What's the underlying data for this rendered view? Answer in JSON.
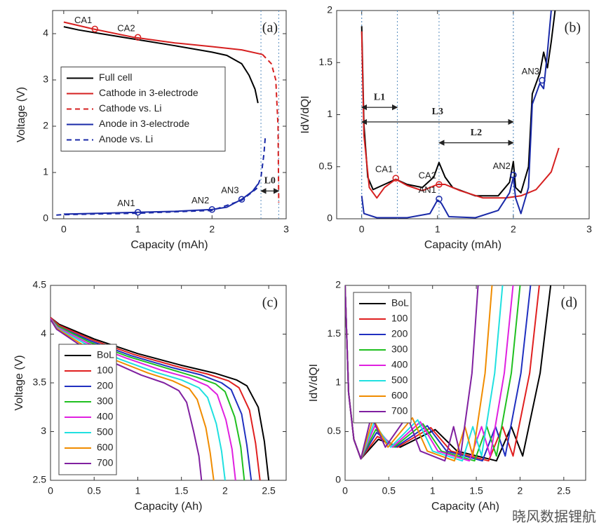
{
  "chart_data": [
    {
      "type": "line",
      "panel_label": "(a)",
      "xlabel": "Capacity (mAh)",
      "ylabel": "Voltage (V)",
      "xlim": [
        -0.15,
        3
      ],
      "ylim": [
        0,
        4.5
      ],
      "xticks": [
        0,
        1,
        2,
        3
      ],
      "yticks": [
        0,
        1,
        2,
        3,
        4
      ],
      "legend": "center left",
      "series": [
        {
          "name": "Full cell",
          "color": "#000000",
          "dashed": false,
          "x": [
            0,
            0.2,
            0.5,
            1,
            1.5,
            2,
            2.2,
            2.4,
            2.5,
            2.58,
            2.62
          ],
          "values": [
            4.15,
            4.08,
            4.0,
            3.87,
            3.74,
            3.6,
            3.53,
            3.35,
            3.1,
            2.8,
            2.5
          ]
        },
        {
          "name": "Cathode in 3-electrode",
          "color": "#d62020",
          "dashed": false,
          "x": [
            0,
            0.4,
            0.95,
            1.5,
            2,
            2.4,
            2.68
          ],
          "values": [
            4.25,
            4.1,
            3.92,
            3.8,
            3.72,
            3.65,
            3.55
          ]
        },
        {
          "name": "Cathode vs. Li",
          "color": "#d62020",
          "dashed": true,
          "x": [
            2.68,
            2.8,
            2.86,
            2.89,
            2.9
          ],
          "values": [
            3.55,
            3.35,
            3.0,
            2.0,
            0.35
          ]
        },
        {
          "name": "Anode in 3-electrode",
          "color": "#1a2aa8",
          "dashed": false,
          "x": [
            0,
            0.5,
            1,
            1.5,
            2,
            2.2,
            2.4,
            2.55,
            2.62
          ],
          "values": [
            0.1,
            0.12,
            0.14,
            0.16,
            0.2,
            0.25,
            0.42,
            0.6,
            0.75
          ]
        },
        {
          "name": "Anode vs. Li",
          "color": "#1a2aa8",
          "dashed": true,
          "x": [
            -0.1,
            0,
            1,
            2,
            2.4,
            2.6,
            2.66,
            2.7,
            2.72
          ],
          "values": [
            0.08,
            0.09,
            0.12,
            0.18,
            0.4,
            0.65,
            0.9,
            1.4,
            1.8
          ]
        }
      ],
      "annotations": [
        {
          "text": "CA1",
          "x": 0.42,
          "y": 4.1,
          "color": "#d62020"
        },
        {
          "text": "CA2",
          "x": 1.0,
          "y": 3.92,
          "color": "#d62020"
        },
        {
          "text": "AN1",
          "x": 1.0,
          "y": 0.14,
          "color": "#1a2aa8"
        },
        {
          "text": "AN2",
          "x": 2.0,
          "y": 0.2,
          "color": "#1a2aa8"
        },
        {
          "text": "AN3",
          "x": 2.4,
          "y": 0.42,
          "color": "#1a2aa8"
        }
      ],
      "spans": [
        {
          "text": "L0",
          "x": [
            2.66,
            2.9
          ],
          "y": 0.6
        }
      ]
    },
    {
      "type": "line",
      "panel_label": "(b)",
      "xlabel": "Capacity (mAh)",
      "ylabel": "IdV/dQI",
      "xlim": [
        -0.33,
        3
      ],
      "ylim": [
        0,
        2
      ],
      "xticks": [
        0,
        1,
        2,
        3
      ],
      "yticks": [
        0,
        0.5,
        1,
        1.5,
        2
      ],
      "series": [
        {
          "color": "#000000",
          "dashed": false,
          "x": [
            0,
            0.03,
            0.08,
            0.15,
            0.3,
            0.45,
            0.6,
            0.8,
            0.95,
            1.02,
            1.1,
            1.2,
            1.5,
            1.8,
            1.95,
            2.0,
            2.03,
            2.1,
            2.2,
            2.25,
            2.3,
            2.35,
            2.4,
            2.45,
            2.5,
            2.55
          ],
          "values": [
            1.85,
            0.9,
            0.4,
            0.28,
            0.33,
            0.38,
            0.33,
            0.3,
            0.4,
            0.54,
            0.4,
            0.3,
            0.22,
            0.22,
            0.35,
            0.55,
            0.3,
            0.25,
            0.5,
            1.2,
            1.3,
            1.4,
            1.6,
            1.45,
            1.7,
            2.0
          ]
        },
        {
          "color": "#d62020",
          "dashed": false,
          "x": [
            0,
            0.03,
            0.1,
            0.2,
            0.3,
            0.45,
            0.6,
            0.8,
            1.0,
            1.1,
            1.3,
            1.6,
            1.9,
            2.1,
            2.3,
            2.5,
            2.6
          ],
          "values": [
            1.8,
            0.8,
            0.3,
            0.2,
            0.3,
            0.38,
            0.32,
            0.27,
            0.33,
            0.33,
            0.27,
            0.2,
            0.2,
            0.22,
            0.28,
            0.45,
            0.68
          ]
        },
        {
          "color": "#1a2aa8",
          "dashed": false,
          "x": [
            0,
            0.03,
            0.2,
            0.6,
            0.9,
            1.0,
            1.05,
            1.15,
            1.5,
            1.8,
            1.95,
            2.0,
            2.03,
            2.1,
            2.2,
            2.25,
            2.3,
            2.35,
            2.4,
            2.45,
            2.5
          ],
          "values": [
            0.22,
            0.05,
            0.01,
            0.01,
            0.05,
            0.18,
            0.15,
            0.02,
            0.01,
            0.08,
            0.25,
            0.4,
            0.2,
            0.05,
            0.3,
            1.1,
            1.2,
            1.3,
            1.25,
            1.6,
            2.0
          ]
        }
      ],
      "annotations": [
        {
          "text": "CA1",
          "x": 0.45,
          "y": 0.39,
          "color": "#d62020"
        },
        {
          "text": "CA2",
          "x": 1.02,
          "y": 0.33,
          "color": "#d62020"
        },
        {
          "text": "AN1",
          "x": 1.02,
          "y": 0.19,
          "color": "#1a2aa8"
        },
        {
          "text": "AN2",
          "x": 2.0,
          "y": 0.42,
          "color": "#1a2aa8"
        },
        {
          "text": "AN3",
          "x": 2.38,
          "y": 1.33,
          "color": "#1a2aa8"
        }
      ],
      "spans": [
        {
          "text": "L1",
          "x": [
            0,
            0.47
          ],
          "y": 1.07
        },
        {
          "text": "L3",
          "x": [
            0,
            2.0
          ],
          "y": 0.93
        },
        {
          "text": "L2",
          "x": [
            1.02,
            2.0
          ],
          "y": 0.73
        }
      ]
    },
    {
      "type": "line",
      "panel_label": "(c)",
      "xlabel": "Capacity (Ah)",
      "ylabel": "Voltage (V)",
      "xlim": [
        0,
        2.7
      ],
      "ylim": [
        2.5,
        4.5
      ],
      "xticks": [
        0,
        0.5,
        1,
        1.5,
        2,
        2.5
      ],
      "yticks": [
        2.5,
        3,
        3.5,
        4,
        4.5
      ],
      "legend": "lower left",
      "series": [
        {
          "name": "BoL",
          "color": "#000000",
          "dashed": false,
          "x": [
            0,
            0.1,
            0.5,
            1.0,
            1.5,
            1.88,
            2.13,
            2.25,
            2.38,
            2.45,
            2.5
          ],
          "values": [
            4.17,
            4.1,
            3.95,
            3.8,
            3.68,
            3.6,
            3.53,
            3.47,
            3.25,
            2.9,
            2.5
          ]
        },
        {
          "name": "100",
          "color": "#e02020",
          "dashed": false,
          "x": [
            0,
            0.1,
            0.48,
            0.96,
            1.44,
            1.8,
            2.04,
            2.16,
            2.28,
            2.35,
            2.4
          ],
          "values": [
            4.17,
            4.09,
            3.94,
            3.79,
            3.67,
            3.59,
            3.52,
            3.45,
            3.22,
            2.88,
            2.5
          ]
        },
        {
          "name": "200",
          "color": "#2030c0",
          "dashed": false,
          "x": [
            0,
            0.09,
            0.46,
            0.92,
            1.38,
            1.73,
            1.96,
            2.07,
            2.19,
            2.25,
            2.3
          ],
          "values": [
            4.16,
            4.08,
            3.93,
            3.78,
            3.66,
            3.58,
            3.5,
            3.43,
            3.18,
            2.86,
            2.5
          ]
        },
        {
          "name": "300",
          "color": "#20c020",
          "dashed": false,
          "x": [
            0,
            0.09,
            0.44,
            0.89,
            1.33,
            1.67,
            1.89,
            2.0,
            2.11,
            2.18,
            2.22
          ],
          "values": [
            4.16,
            4.08,
            3.92,
            3.77,
            3.65,
            3.56,
            3.49,
            3.41,
            3.15,
            2.84,
            2.5
          ]
        },
        {
          "name": "400",
          "color": "#e020e0",
          "dashed": false,
          "x": [
            0,
            0.08,
            0.42,
            0.85,
            1.27,
            1.59,
            1.8,
            1.91,
            2.01,
            2.08,
            2.12
          ],
          "values": [
            4.16,
            4.07,
            3.91,
            3.76,
            3.63,
            3.55,
            3.47,
            3.38,
            3.12,
            2.82,
            2.5
          ]
        },
        {
          "name": "500",
          "color": "#20e0e0",
          "dashed": false,
          "x": [
            0,
            0.08,
            0.4,
            0.8,
            1.2,
            1.5,
            1.7,
            1.8,
            1.9,
            1.96,
            2.0
          ],
          "values": [
            4.15,
            4.06,
            3.9,
            3.74,
            3.61,
            3.53,
            3.45,
            3.35,
            3.08,
            2.8,
            2.5
          ]
        },
        {
          "name": "600",
          "color": "#f08c00",
          "dashed": false,
          "x": [
            0,
            0.07,
            0.37,
            0.75,
            1.12,
            1.4,
            1.59,
            1.68,
            1.78,
            1.83,
            1.87
          ],
          "values": [
            4.15,
            4.06,
            3.89,
            3.73,
            3.6,
            3.52,
            3.44,
            3.33,
            3.04,
            2.78,
            2.5
          ]
        },
        {
          "name": "700",
          "color": "#8020a0",
          "dashed": false,
          "x": [
            0,
            0.07,
            0.35,
            0.69,
            1.04,
            1.3,
            1.47,
            1.56,
            1.64,
            1.7,
            1.73
          ],
          "values": [
            4.15,
            4.05,
            3.88,
            3.72,
            3.58,
            3.5,
            3.42,
            3.3,
            3.0,
            2.75,
            2.5
          ]
        }
      ]
    },
    {
      "type": "line",
      "panel_label": "(d)",
      "xlabel": "Capacity (Ah)",
      "ylabel": "IdV/dQI",
      "xlim": [
        0,
        2.75
      ],
      "ylim": [
        0,
        2
      ],
      "xticks": [
        0,
        0.5,
        1,
        1.5,
        2,
        2.5
      ],
      "yticks": [
        0,
        0.5,
        1,
        1.5,
        2
      ],
      "legend": "upper left",
      "series": [
        {
          "name": "BoL",
          "color": "#000000",
          "dashed": false,
          "x": [
            0,
            0.04,
            0.1,
            0.18,
            0.38,
            0.63,
            1.03,
            1.28,
            1.73,
            1.9,
            2.03,
            2.23,
            2.35
          ],
          "values": [
            2,
            0.9,
            0.42,
            0.22,
            0.42,
            0.34,
            0.52,
            0.3,
            0.2,
            0.55,
            0.25,
            1.1,
            2
          ]
        },
        {
          "name": "100",
          "color": "#e02020",
          "dashed": false,
          "x": [
            0,
            0.04,
            0.1,
            0.18,
            0.37,
            0.6,
            0.98,
            1.21,
            1.64,
            1.8,
            1.92,
            2.11,
            2.22
          ],
          "values": [
            2,
            0.9,
            0.42,
            0.22,
            0.45,
            0.34,
            0.54,
            0.3,
            0.2,
            0.55,
            0.25,
            1.1,
            2
          ]
        },
        {
          "name": "200",
          "color": "#2030c0",
          "dashed": false,
          "x": [
            0,
            0.04,
            0.1,
            0.18,
            0.36,
            0.58,
            0.94,
            1.16,
            1.57,
            1.72,
            1.83,
            2.01,
            2.12
          ],
          "values": [
            2,
            0.9,
            0.42,
            0.22,
            0.49,
            0.34,
            0.56,
            0.3,
            0.2,
            0.55,
            0.25,
            1.1,
            2
          ]
        },
        {
          "name": "300",
          "color": "#20c020",
          "dashed": false,
          "x": [
            0,
            0.04,
            0.1,
            0.18,
            0.35,
            0.56,
            0.89,
            1.1,
            1.48,
            1.62,
            1.73,
            1.9,
            2.0
          ],
          "values": [
            2,
            0.9,
            0.42,
            0.22,
            0.52,
            0.34,
            0.58,
            0.3,
            0.2,
            0.55,
            0.25,
            1.1,
            2
          ]
        },
        {
          "name": "400",
          "color": "#e020e0",
          "dashed": false,
          "x": [
            0,
            0.04,
            0.1,
            0.18,
            0.34,
            0.54,
            0.86,
            1.06,
            1.42,
            1.56,
            1.66,
            1.82,
            1.92
          ],
          "values": [
            2,
            0.9,
            0.42,
            0.22,
            0.56,
            0.34,
            0.6,
            0.3,
            0.2,
            0.55,
            0.25,
            1.1,
            2
          ]
        },
        {
          "name": "500",
          "color": "#20e0e0",
          "dashed": false,
          "x": [
            0,
            0.04,
            0.1,
            0.18,
            0.33,
            0.52,
            0.83,
            1.0,
            1.34,
            1.46,
            1.56,
            1.71,
            1.8
          ],
          "values": [
            2,
            0.9,
            0.42,
            0.22,
            0.59,
            0.34,
            0.62,
            0.3,
            0.2,
            0.55,
            0.25,
            1.1,
            2
          ]
        },
        {
          "name": "600",
          "color": "#f08c00",
          "dashed": false,
          "x": [
            0,
            0.04,
            0.1,
            0.18,
            0.32,
            0.49,
            0.77,
            0.94,
            1.25,
            1.37,
            1.46,
            1.6,
            1.68
          ],
          "values": [
            2,
            0.9,
            0.42,
            0.22,
            0.63,
            0.34,
            0.64,
            0.3,
            0.2,
            0.55,
            0.25,
            1.1,
            2
          ]
        },
        {
          "name": "700",
          "color": "#8020a0",
          "dashed": false,
          "x": [
            0,
            0.04,
            0.1,
            0.18,
            0.3,
            0.46,
            0.71,
            0.86,
            1.14,
            1.24,
            1.32,
            1.45,
            1.52
          ],
          "values": [
            2,
            0.9,
            0.42,
            0.22,
            0.66,
            0.34,
            0.66,
            0.3,
            0.2,
            0.55,
            0.25,
            1.1,
            2
          ]
        }
      ]
    }
  ],
  "watermark": "晓风数据锂航"
}
